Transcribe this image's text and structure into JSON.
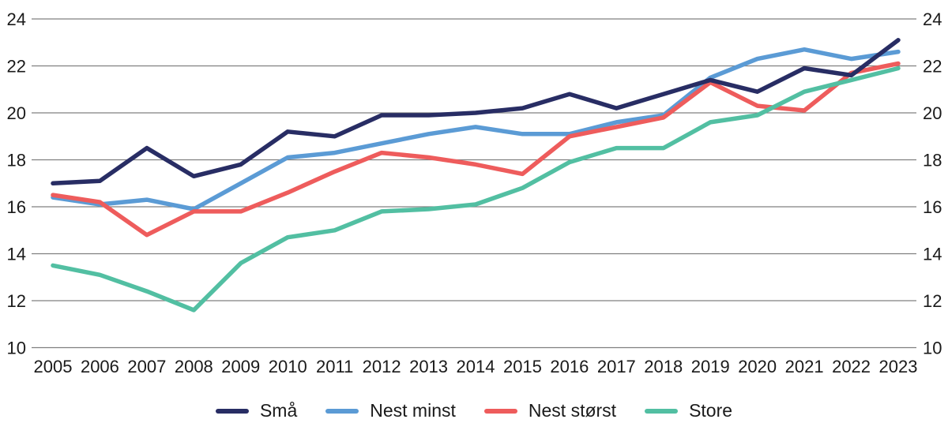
{
  "chart_data": {
    "type": "line",
    "title": "",
    "xlabel": "",
    "ylabel": "",
    "x": [
      2005,
      2006,
      2007,
      2008,
      2009,
      2010,
      2011,
      2012,
      2013,
      2014,
      2015,
      2016,
      2017,
      2018,
      2019,
      2020,
      2021,
      2022,
      2023
    ],
    "series": [
      {
        "name": "Små",
        "color": "#282D64",
        "values": [
          17.0,
          17.1,
          18.5,
          17.3,
          17.8,
          19.2,
          19.0,
          19.9,
          19.9,
          20.0,
          20.2,
          20.8,
          20.2,
          20.8,
          21.4,
          20.9,
          21.9,
          21.6,
          23.1
        ]
      },
      {
        "name": "Nest minst",
        "color": "#5B9BD5",
        "values": [
          16.4,
          16.1,
          16.3,
          15.9,
          17.0,
          18.1,
          18.3,
          18.7,
          19.1,
          19.4,
          19.1,
          19.1,
          19.6,
          19.9,
          21.5,
          22.3,
          22.7,
          22.3,
          22.6
        ]
      },
      {
        "name": "Nest størst",
        "color": "#EE5C5C",
        "values": [
          16.5,
          16.2,
          14.8,
          15.8,
          15.8,
          16.6,
          17.5,
          18.3,
          18.1,
          17.8,
          17.4,
          19.0,
          19.4,
          19.8,
          21.3,
          20.3,
          20.1,
          21.7,
          22.1
        ]
      },
      {
        "name": "Store",
        "color": "#52BFA2",
        "values": [
          13.5,
          13.1,
          12.4,
          11.6,
          13.6,
          14.7,
          15.0,
          15.8,
          15.9,
          16.1,
          16.8,
          17.9,
          18.5,
          18.5,
          19.6,
          19.9,
          20.9,
          21.4,
          21.9
        ]
      }
    ],
    "yticks": [
      24,
      22,
      20,
      18,
      16,
      14,
      12,
      10
    ],
    "ylim": [
      10,
      24
    ],
    "y_axis_sides": "both",
    "grid": true,
    "gridline_color": "#808080",
    "legend_position": "bottom",
    "background": "#FFFFFF"
  }
}
